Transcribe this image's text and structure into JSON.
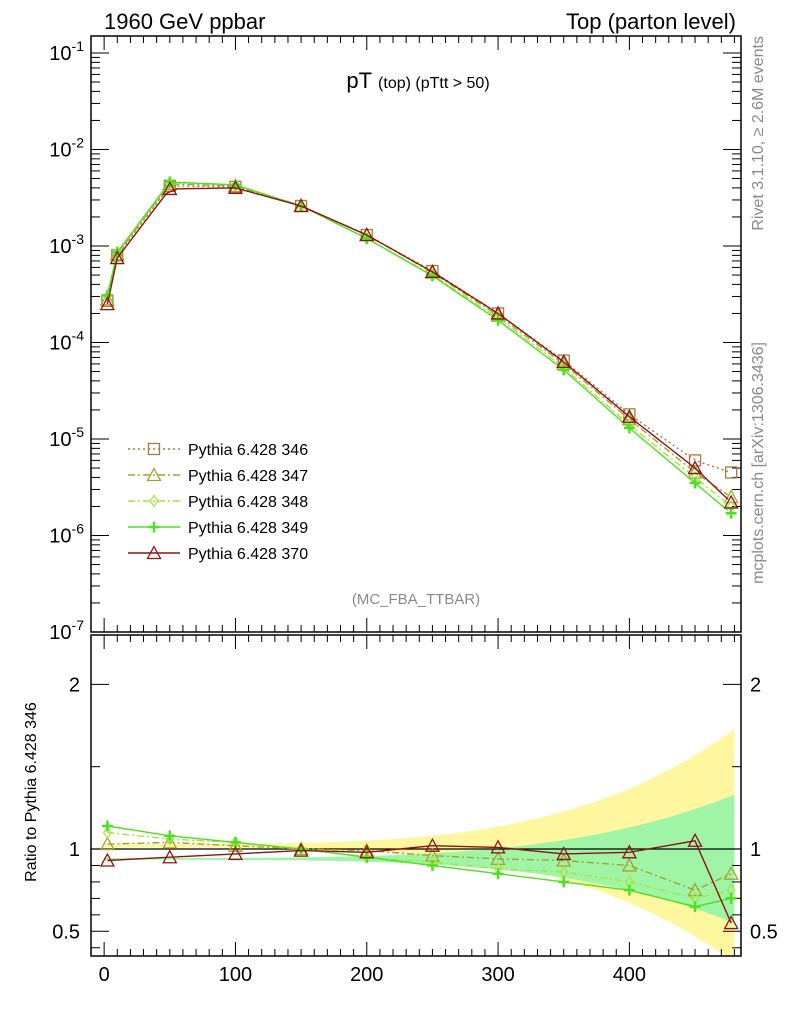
{
  "header": {
    "left": "1960 GeV ppbar",
    "right": "Top (parton level)"
  },
  "plot_title": {
    "main": "pT",
    "sub": "(top) (pTtt > 50)"
  },
  "watermark": "(MC_FBA_TTBAR)",
  "side_text": {
    "rivet": "Rivet 3.1.10, ≥ 2.6M events",
    "site": "mcplots.cern.ch [arXiv:1306.3436]"
  },
  "colors": {
    "s346": "#a77a3f",
    "s347": "#a3a329",
    "s348": "#a6e43a",
    "s349": "#4fe024",
    "s370": "#8c1414",
    "band_yellow": "#fff7a0",
    "band_green": "#9ff5a5"
  },
  "chart_data": [
    {
      "type": "line",
      "panel": "main",
      "ylabel": "",
      "xlabel": "",
      "yscale": "log",
      "ylim": [
        1e-07,
        0.15
      ],
      "xlim": [
        -10,
        485
      ],
      "ytick_labels": [
        "10^-7",
        "10^-6",
        "10^-5",
        "10^-4",
        "10^-3",
        "10^-2",
        "10^-1"
      ],
      "legend_position": "middle-left",
      "series": [
        {
          "name": "Pythia 6.428 346",
          "marker": "square",
          "linestyle": "dotted",
          "x": [
            2.5,
            10,
            50,
            100,
            150,
            200,
            250,
            300,
            350,
            400,
            450,
            477.5
          ],
          "y": [
            0.00027,
            0.0008,
            0.0042,
            0.0041,
            0.0026,
            0.0013,
            0.00055,
            0.0002,
            6.5e-05,
            1.8e-05,
            6e-06,
            4.5e-06
          ]
        },
        {
          "name": "Pythia 6.428 347",
          "marker": "triangle",
          "linestyle": "dashdot",
          "x": [
            2.5,
            10,
            50,
            100,
            150,
            200,
            250,
            300,
            350,
            400,
            450,
            477.5
          ],
          "y": [
            0.00028,
            0.00082,
            0.0044,
            0.0042,
            0.0026,
            0.0013,
            0.00053,
            0.00019,
            6e-05,
            1.6e-05,
            4.5e-06,
            2.5e-06
          ]
        },
        {
          "name": "Pythia 6.428 348",
          "marker": "diamond",
          "linestyle": "dashdot",
          "x": [
            2.5,
            10,
            50,
            100,
            150,
            200,
            250,
            300,
            350,
            400,
            450,
            477.5
          ],
          "y": [
            0.0003,
            0.00085,
            0.0045,
            0.0043,
            0.0026,
            0.0012,
            0.0005,
            0.00018,
            5.5e-05,
            1.4e-05,
            4e-06,
            2e-06
          ]
        },
        {
          "name": "Pythia 6.428 349",
          "marker": "cross",
          "linestyle": "solid",
          "x": [
            2.5,
            10,
            50,
            100,
            150,
            200,
            250,
            300,
            350,
            400,
            450,
            477.5
          ],
          "y": [
            0.00031,
            0.00086,
            0.0046,
            0.0043,
            0.0026,
            0.0012,
            0.00049,
            0.00017,
            5.2e-05,
            1.3e-05,
            3.5e-06,
            1.7e-06
          ]
        },
        {
          "name": "Pythia 6.428 370",
          "marker": "triangle",
          "linestyle": "solid",
          "x": [
            2.5,
            10,
            50,
            100,
            150,
            200,
            250,
            300,
            350,
            400,
            450,
            477.5
          ],
          "y": [
            0.00025,
            0.00075,
            0.0039,
            0.004,
            0.0026,
            0.0013,
            0.00054,
            0.0002,
            6.3e-05,
            1.7e-05,
            5e-06,
            2.2e-06
          ]
        }
      ]
    },
    {
      "type": "line",
      "panel": "ratio",
      "ylabel": "Ratio to Pythia 6.428 346",
      "xlabel": "",
      "ylim": [
        0.35,
        2.3
      ],
      "xlim": [
        -10,
        485
      ],
      "ytick_labels": [
        "0.5",
        "1",
        "2"
      ],
      "xtick_labels": [
        "0",
        "100",
        "200",
        "300",
        "400"
      ],
      "series": [
        {
          "name": "Pythia 6.428 347",
          "x": [
            2.5,
            50,
            100,
            150,
            200,
            250,
            300,
            350,
            400,
            450,
            477.5
          ],
          "y": [
            1.03,
            1.04,
            1.02,
            1.0,
            0.99,
            0.96,
            0.94,
            0.93,
            0.9,
            0.75,
            0.85
          ]
        },
        {
          "name": "Pythia 6.428 348",
          "x": [
            2.5,
            50,
            100,
            150,
            200,
            250,
            300,
            350,
            400,
            450,
            477.5
          ],
          "y": [
            1.1,
            1.06,
            1.04,
            1.0,
            0.95,
            0.92,
            0.88,
            0.86,
            0.8,
            0.7,
            0.75
          ]
        },
        {
          "name": "Pythia 6.428 349",
          "x": [
            2.5,
            50,
            100,
            150,
            200,
            250,
            300,
            350,
            400,
            450,
            477.5
          ],
          "y": [
            1.14,
            1.08,
            1.04,
            1.0,
            0.95,
            0.9,
            0.85,
            0.8,
            0.75,
            0.65,
            0.7
          ]
        },
        {
          "name": "Pythia 6.428 370",
          "x": [
            2.5,
            50,
            100,
            150,
            200,
            250,
            300,
            350,
            400,
            450,
            477.5
          ],
          "y": [
            0.93,
            0.95,
            0.97,
            0.99,
            0.98,
            1.02,
            1.01,
            0.97,
            0.98,
            1.05,
            0.55
          ]
        }
      ]
    }
  ]
}
